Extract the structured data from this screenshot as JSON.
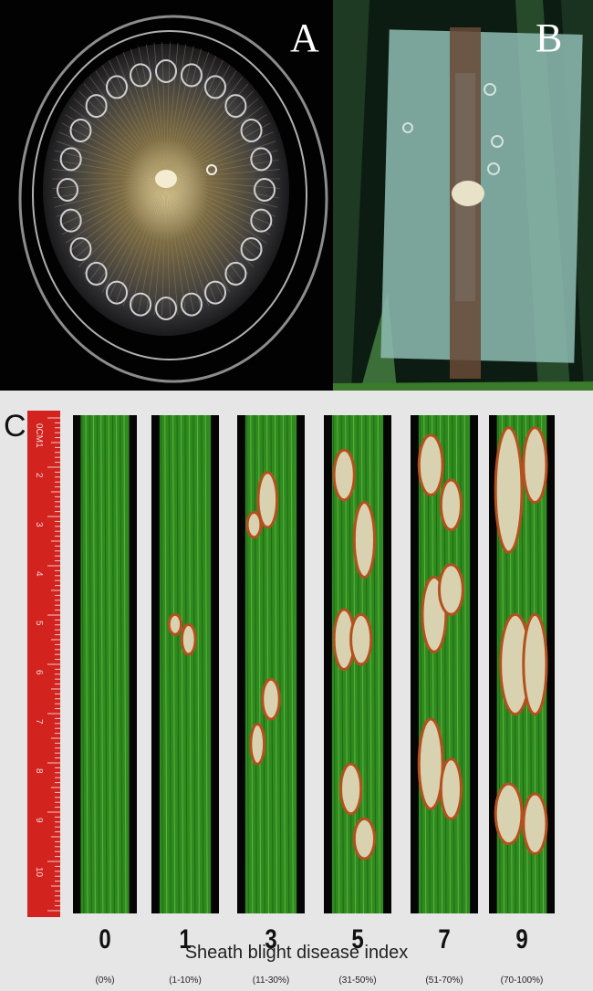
{
  "panels": {
    "a": {
      "label": "A"
    },
    "b": {
      "label": "B"
    },
    "c": {
      "label": "C",
      "ruler_text": "0CM1 2 3 4 5 6 7 8 9 10",
      "axis_title": "Sheath blight disease index",
      "samples": [
        {
          "index": "0",
          "range": "(0%)"
        },
        {
          "index": "1",
          "range": "(1-10%)"
        },
        {
          "index": "3",
          "range": "(11-30%)"
        },
        {
          "index": "5",
          "range": "(31-50%)"
        },
        {
          "index": "7",
          "range": "(51-70%)"
        },
        {
          "index": "9",
          "range": "(70-100%)"
        }
      ]
    }
  },
  "colors": {
    "ruler": "#d2231f",
    "leaf_green": "#2f8a1f",
    "lesion": "#d9d2b0",
    "lesion_edge": "#b5501e"
  }
}
